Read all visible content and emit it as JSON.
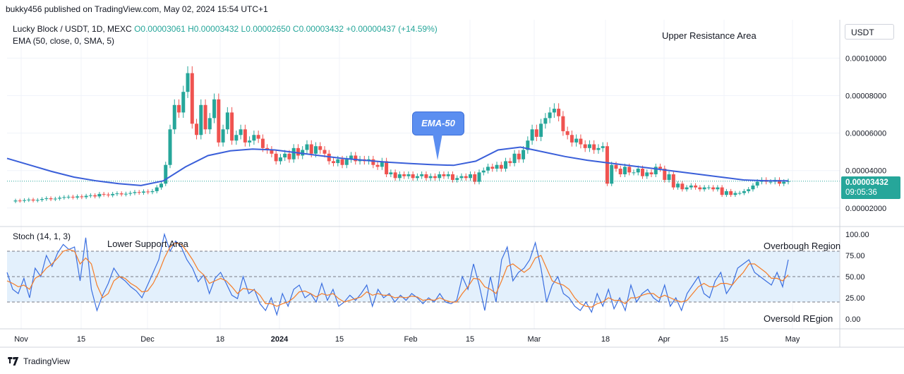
{
  "header": {
    "published": "bukky456 published on TradingView.com, May 02, 2024 15:54 UTC+1"
  },
  "legend": {
    "symbol": "Lucky Block / USDT, 1D, MEXC",
    "ohlc": "O0.00003061 H0.00003432 L0.00002650 C0.00003432 +0.00000437 (+14.59%)",
    "indicator": "EMA (50, close, 0, SMA, 5)"
  },
  "stoch_legend": "Stoch (14, 1, 3)",
  "currency": "USDT",
  "price_tag": {
    "price": "0.00003432",
    "countdown": "09:05:36"
  },
  "annotations": {
    "upper_resistance": "Upper Resistance Area",
    "lower_support": "Lower Support Area",
    "ema_callout": "EMA-50",
    "overbought": "Overbough Region",
    "oversold": "Oversold REgion"
  },
  "footer": {
    "brand": "TradingView"
  },
  "colors": {
    "up": "#26a69a",
    "down": "#ef5350",
    "ema": "#3a5fd9",
    "stoch_k": "#3b6fe0",
    "stoch_d": "#f57c27",
    "band": "#e3f0fc"
  },
  "chart_data": [
    {
      "type": "candlestick",
      "title": "Lucky Block / USDT, 1D, MEXC",
      "y_axis_ticks": [
        "0.00010000",
        "0.00008000",
        "0.00006000",
        "0.00004000",
        "0.00002000"
      ],
      "y_axis_values": [
        0.0001,
        8e-05,
        6e-05,
        4e-05,
        2e-05
      ],
      "ylim": [
        1.05e-05,
        0.0001205
      ],
      "x_axis_ticks": [
        "Nov",
        "15",
        "Dec",
        "18",
        "2024",
        "15",
        "Feb",
        "15",
        "Mar",
        "18",
        "Apr",
        "15",
        "May"
      ],
      "last_close": 3.432e-05,
      "candles_close": [
        2.4e-05,
        2.38e-05,
        2.42e-05,
        2.45e-05,
        2.4e-05,
        2.43e-05,
        2.48e-05,
        2.52e-05,
        2.47e-05,
        2.5e-05,
        2.55e-05,
        2.58e-05,
        2.6e-05,
        2.56e-05,
        2.62e-05,
        2.58e-05,
        2.65e-05,
        2.68e-05,
        2.62e-05,
        2.75e-05,
        2.72e-05,
        2.68e-05,
        2.75e-05,
        2.78e-05,
        2.73e-05,
        2.76e-05,
        2.8e-05,
        2.85e-05,
        2.82e-05,
        2.88e-05,
        2.85e-05,
        2.9e-05,
        3.1e-05,
        3.3e-05,
        4.3e-05,
        6.2e-05,
        7.5e-05,
        7.1e-05,
        8.2e-05,
        9.2e-05,
        6.5e-05,
        5.9e-05,
        7.5e-05,
        6.2e-05,
        6.8e-05,
        7.8e-05,
        5.5e-05,
        6.2e-05,
        7.1e-05,
        5.6e-05,
        5.9e-05,
        6.2e-05,
        5.5e-05,
        5.6e-05,
        5.9e-05,
        5.7e-05,
        5.2e-05,
        5.1e-05,
        4.9e-05,
        4.5e-05,
        4.7e-05,
        4.9e-05,
        4.6e-05,
        5.2e-05,
        4.8e-05,
        5.1e-05,
        5.4e-05,
        4.9e-05,
        5.3e-05,
        5.1e-05,
        4.9e-05,
        4.5e-05,
        4.4e-05,
        4.6e-05,
        4.3e-05,
        4.6e-05,
        4.8e-05,
        4.5e-05,
        4.6e-05,
        4.5e-05,
        4.6e-05,
        4.3e-05,
        4.2e-05,
        4.5e-05,
        3.8e-05,
        3.9e-05,
        3.6e-05,
        3.8e-05,
        3.7e-05,
        3.8e-05,
        3.6e-05,
        3.7e-05,
        3.8e-05,
        3.6e-05,
        3.7e-05,
        3.6e-05,
        3.8e-05,
        3.7e-05,
        3.8e-05,
        3.5e-05,
        3.6e-05,
        3.7e-05,
        3.6e-05,
        3.8e-05,
        3.4e-05,
        3.9e-05,
        4e-05,
        4.2e-05,
        4.1e-05,
        4.3e-05,
        4.1e-05,
        4.5e-05,
        4.4e-05,
        4.9e-05,
        4.6e-05,
        5.1e-05,
        5.6e-05,
        6.2e-05,
        5.8e-05,
        6.5e-05,
        6.8e-05,
        7.1e-05,
        7.3e-05,
        6.9e-05,
        6.1e-05,
        5.9e-05,
        5.5e-05,
        5.7e-05,
        5.4e-05,
        5.2e-05,
        5.4e-05,
        5.1e-05,
        5.2e-05,
        5.3e-05,
        3.3e-05,
        4.3e-05,
        4.1e-05,
        3.8e-05,
        4.2e-05,
        3.9e-05,
        3.9e-05,
        4.1e-05,
        3.7e-05,
        3.9e-05,
        3.8e-05,
        4.2e-05,
        4.1e-05,
        3.5e-05,
        3.8e-05,
        3.1e-05,
        3.3e-05,
        3e-05,
        3.1e-05,
        3.2e-05,
        3.1e-05,
        3e-05,
        3.1e-05,
        3.1e-05,
        3e-05,
        3.1e-05,
        2.7e-05,
        2.9e-05,
        2.7e-05,
        2.8e-05,
        2.8e-05,
        2.9e-05,
        3e-05,
        3.2e-05,
        3.4e-05,
        3.5e-05,
        3.4e-05,
        3.4e-05,
        3.5e-05,
        3.3e-05,
        3.4e-05,
        3.432e-05
      ],
      "ema50": [
        4.65e-05,
        4.3e-05,
        3.95e-05,
        3.65e-05,
        3.45e-05,
        3.3e-05,
        3.2e-05,
        3.45e-05,
        4.2e-05,
        4.8e-05,
        5.05e-05,
        5.15e-05,
        5.1e-05,
        4.95e-05,
        4.8e-05,
        4.65e-05,
        4.55e-05,
        4.45e-05,
        4.38e-05,
        4.32e-05,
        4.28e-05,
        4.5e-05,
        5.1e-05,
        5.25e-05,
        5e-05,
        4.75e-05,
        4.55e-05,
        4.4e-05,
        4.25e-05,
        4.1e-05,
        3.95e-05,
        3.8e-05,
        3.65e-05,
        3.5e-05,
        3.45e-05,
        3.45e-05
      ],
      "ema50_label": "EMA (50, close, 0, SMA, 5)"
    },
    {
      "type": "line",
      "title": "Stoch (14, 1, 3)",
      "y_axis_ticks": [
        "100.00",
        "75.00",
        "50.00",
        "25.00",
        "0.00"
      ],
      "ylim": [
        -5,
        105
      ],
      "bands": {
        "upper": 80,
        "middle": 50,
        "lower": 20
      },
      "series": [
        {
          "name": "%K",
          "values": [
            55,
            35,
            30,
            48,
            25,
            60,
            50,
            75,
            62,
            78,
            88,
            82,
            85,
            45,
            96,
            35,
            10,
            28,
            42,
            60,
            50,
            45,
            38,
            33,
            25,
            40,
            55,
            70,
            100,
            80,
            92,
            85,
            70,
            60,
            44,
            52,
            30,
            48,
            55,
            42,
            28,
            24,
            50,
            30,
            35,
            18,
            10,
            25,
            5,
            30,
            15,
            35,
            40,
            25,
            30,
            20,
            42,
            22,
            35,
            15,
            20,
            28,
            22,
            30,
            40,
            15,
            35,
            25,
            30,
            20,
            28,
            22,
            30,
            25,
            18,
            25,
            20,
            30,
            20,
            18,
            22,
            50,
            35,
            65,
            40,
            10,
            50,
            20,
            70,
            85,
            45,
            55,
            60,
            70,
            90,
            60,
            20,
            40,
            50,
            30,
            25,
            15,
            10,
            20,
            8,
            30,
            15,
            35,
            12,
            25,
            10,
            40,
            20,
            30,
            35,
            25,
            20,
            40,
            15,
            25,
            10,
            30,
            40,
            50,
            30,
            25,
            45,
            55,
            30,
            40,
            60,
            65,
            70,
            55,
            50,
            45,
            40,
            55,
            38,
            70
          ]
        },
        {
          "name": "%D",
          "values": [
            45,
            42,
            38,
            40,
            35,
            48,
            52,
            60,
            65,
            72,
            80,
            82,
            80,
            65,
            72,
            65,
            40,
            25,
            30,
            45,
            50,
            48,
            42,
            38,
            32,
            33,
            42,
            55,
            72,
            85,
            90,
            88,
            80,
            70,
            58,
            52,
            42,
            45,
            48,
            45,
            38,
            30,
            36,
            35,
            34,
            28,
            18,
            18,
            15,
            18,
            20,
            25,
            32,
            33,
            30,
            26,
            30,
            28,
            30,
            24,
            20,
            22,
            24,
            26,
            32,
            28,
            30,
            28,
            28,
            25,
            26,
            25,
            27,
            26,
            22,
            23,
            22,
            25,
            22,
            20,
            20,
            30,
            38,
            48,
            47,
            38,
            35,
            30,
            45,
            62,
            65,
            60,
            55,
            60,
            72,
            75,
            60,
            45,
            42,
            40,
            35,
            25,
            18,
            15,
            14,
            18,
            20,
            25,
            22,
            22,
            18,
            25,
            25,
            28,
            30,
            30,
            25,
            28,
            25,
            22,
            20,
            22,
            30,
            38,
            42,
            38,
            38,
            42,
            42,
            40,
            48,
            55,
            65,
            65,
            60,
            55,
            48,
            48,
            45,
            52
          ]
        }
      ]
    }
  ]
}
